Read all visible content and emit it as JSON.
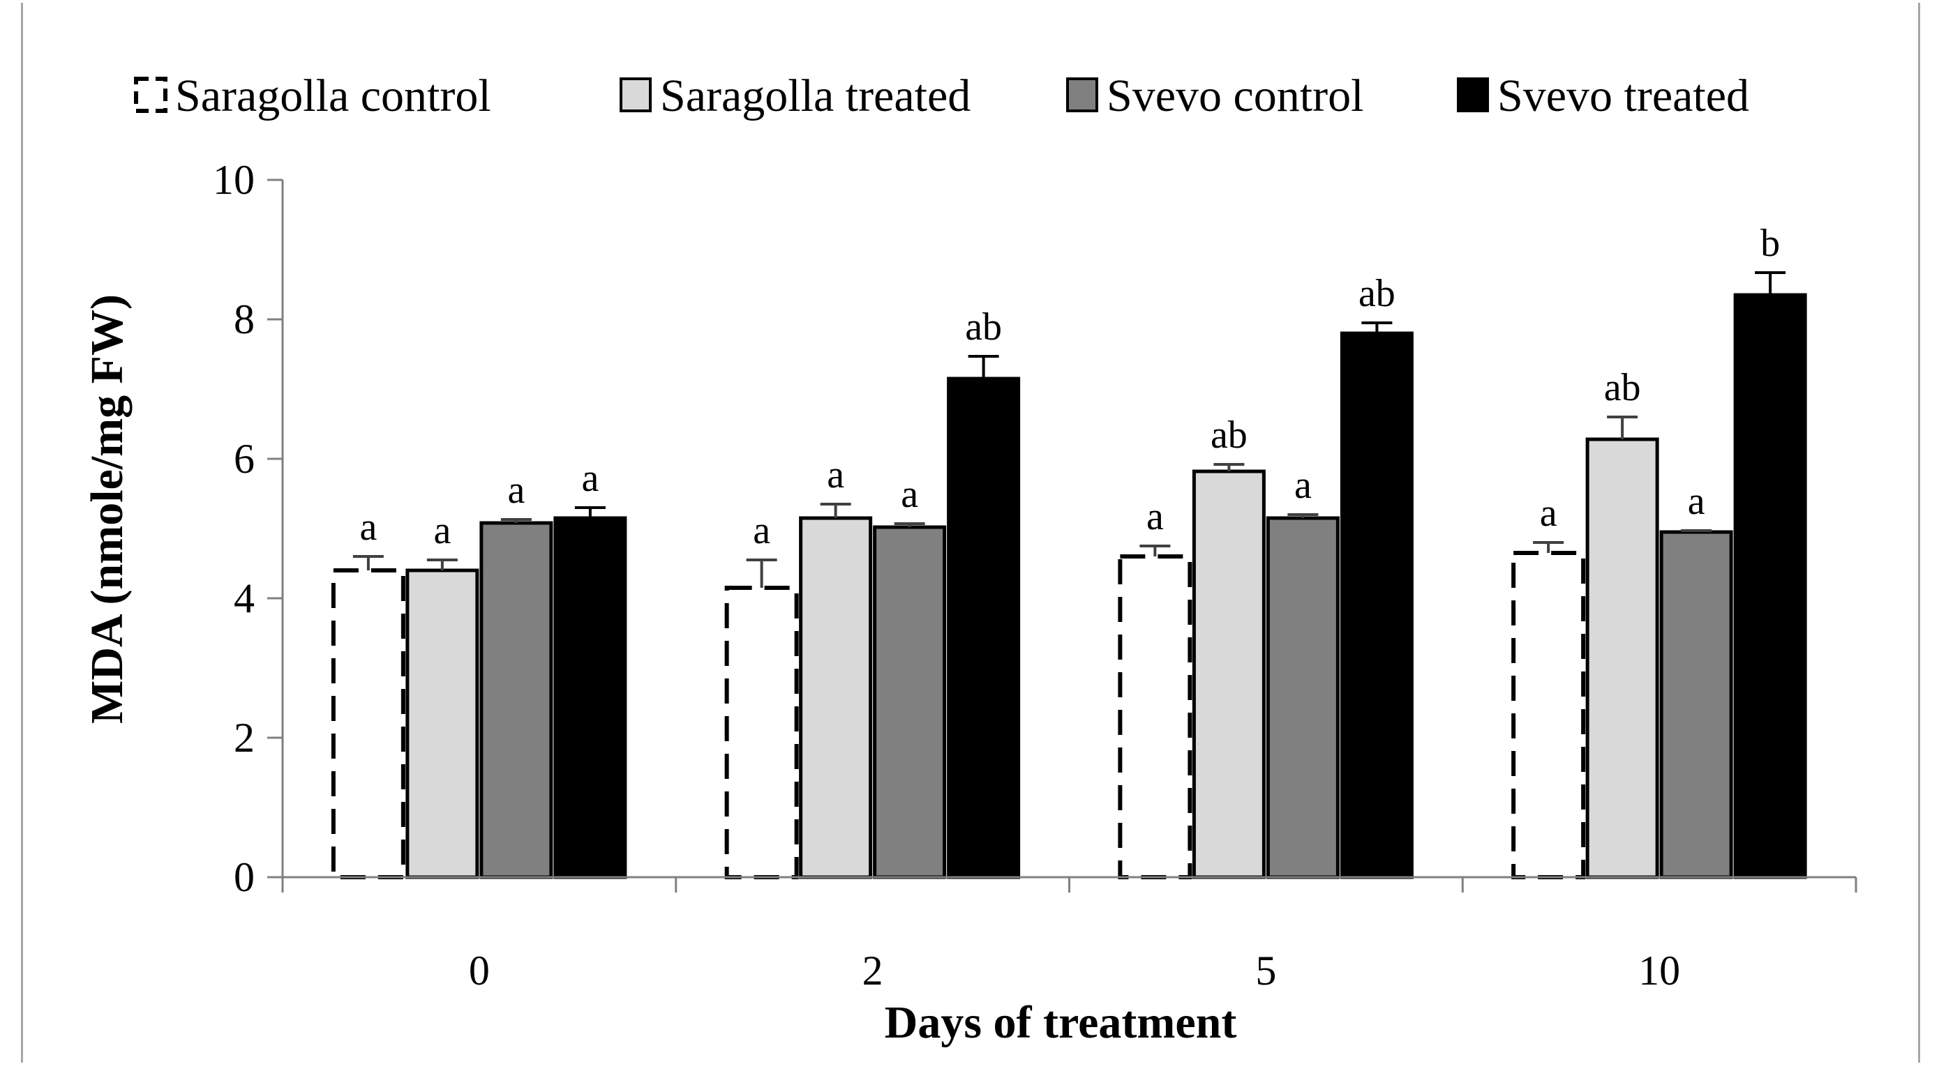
{
  "chart_data": {
    "type": "bar",
    "title": "",
    "xlabel": "Days of treatment",
    "ylabel": "MDA (nmole/mg FW)",
    "ylim": [
      0,
      10
    ],
    "yticks": [
      "0",
      "2",
      "4",
      "6",
      "8",
      "10"
    ],
    "categories": [
      "0",
      "2",
      "5",
      "10"
    ],
    "series": [
      {
        "name": "Saragolla control",
        "color": "#ffffff",
        "style": "dashed",
        "values": [
          4.4,
          4.15,
          4.6,
          4.65
        ],
        "errors": [
          0.2,
          0.4,
          0.15,
          0.15
        ],
        "labels": [
          "a",
          "a",
          "a",
          "a"
        ]
      },
      {
        "name": "Saragolla treated",
        "color": "#d9d9d9",
        "style": "solid",
        "values": [
          4.4,
          5.15,
          5.82,
          6.28
        ],
        "errors": [
          0.15,
          0.2,
          0.1,
          0.32
        ],
        "labels": [
          "a",
          "a",
          "ab",
          "ab"
        ]
      },
      {
        "name": "Svevo control",
        "color": "#808080",
        "style": "solid",
        "values": [
          5.08,
          5.02,
          5.15,
          4.95
        ],
        "errors": [
          0.05,
          0.05,
          0.05,
          0.02
        ],
        "labels": [
          "a",
          "a",
          "a",
          "a"
        ]
      },
      {
        "name": "Svevo treated",
        "color": "#000000",
        "style": "solid",
        "values": [
          5.15,
          7.15,
          7.8,
          8.35
        ],
        "errors": [
          0.15,
          0.32,
          0.15,
          0.32
        ],
        "labels": [
          "a",
          "ab",
          "ab",
          "b"
        ]
      }
    ],
    "legend_position": "top",
    "grid": false
  }
}
